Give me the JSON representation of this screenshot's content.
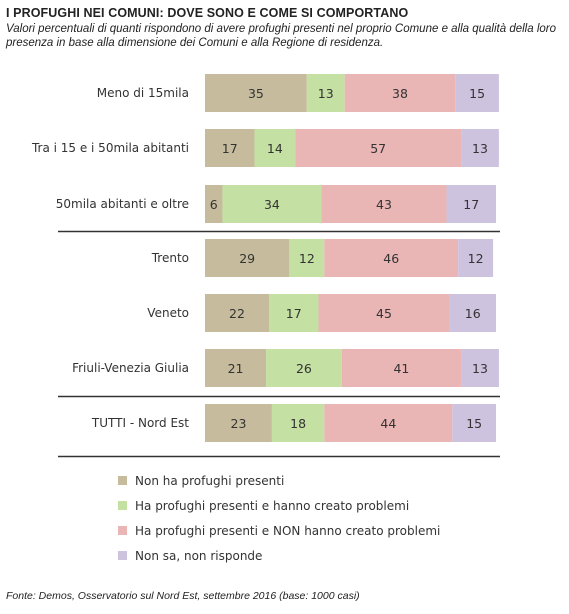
{
  "title": "I PROFUGHI NEI COMUNI: DOVE SONO E COME SI COMPORTANO",
  "subtitle": "Valori percentuali di quanti rispondono di avere profughi presenti nel proprio Comune e alla qualità della loro presenza in base alla dimensione dei Comuni e alla Regione di residenza.",
  "source": "Fonte: Demos, Osservatorio sul Nord Est, settembre  2016 (base: 1000 casi)",
  "colors": {
    "non_ha": "#c6bc9d",
    "ha_problemi": "#c4e0a2",
    "ha_non_problemi": "#eab5b5",
    "non_sa": "#cdc3df"
  },
  "chart_data": {
    "type": "bar",
    "orientation": "horizontal",
    "stacked": true,
    "xlim": [
      0,
      100
    ],
    "categories": [
      "Meno di 15mila",
      "Tra i 15 e i 50mila abitanti",
      "50mila abitanti e oltre",
      "Trento",
      "Veneto",
      "Friuli-Venezia Giulia",
      "TUTTI - Nord Est"
    ],
    "series": [
      {
        "name": "Non ha profughi presenti",
        "values": [
          35,
          17,
          6,
          29,
          22,
          21,
          23
        ]
      },
      {
        "name": "Ha profughi presenti e hanno creato problemi",
        "values": [
          13,
          14,
          34,
          12,
          17,
          26,
          18
        ]
      },
      {
        "name": "Ha profughi presenti e NON hanno creato problemi",
        "values": [
          38,
          57,
          43,
          46,
          45,
          41,
          44
        ]
      },
      {
        "name": "Non sa, non risponde",
        "values": [
          15,
          13,
          17,
          12,
          16,
          13,
          15
        ]
      }
    ],
    "legend_position": "bottom-left",
    "group_separators_after_category_index": [
      2,
      5
    ]
  }
}
